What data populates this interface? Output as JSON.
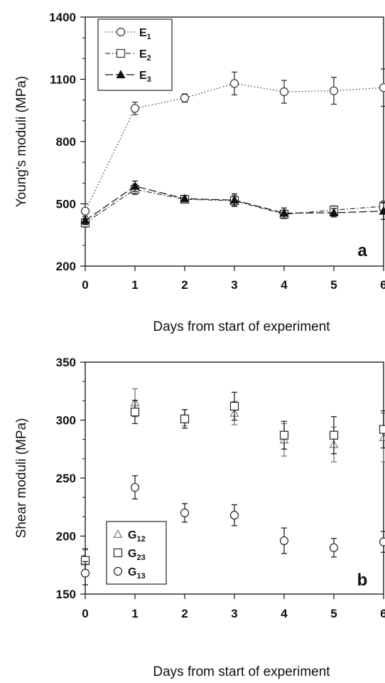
{
  "chart_data": [
    {
      "type": "line",
      "panel_label": "a",
      "xlabel": "Days from start of experiment",
      "ylabel": "Young's moduli (MPa)",
      "xlim": [
        0,
        6
      ],
      "ylim": [
        200,
        1400
      ],
      "x_ticks": [
        0,
        1,
        2,
        3,
        4,
        5,
        6
      ],
      "y_ticks": [
        200,
        500,
        800,
        1100,
        1400
      ],
      "grid": false,
      "legend_position": "top-left",
      "series": [
        {
          "name": "E",
          "sub": "1",
          "marker": "circle-open",
          "dash": "dotted",
          "color": "#333333",
          "x": [
            0,
            1,
            2,
            3,
            4,
            5,
            6
          ],
          "y": [
            465,
            960,
            1010,
            1080,
            1040,
            1045,
            1060
          ],
          "err": [
            35,
            30,
            20,
            55,
            55,
            65,
            90
          ]
        },
        {
          "name": "E",
          "sub": "2",
          "marker": "square-open",
          "dash": "dashdot",
          "color": "#333333",
          "x": [
            0,
            1,
            2,
            3,
            4,
            5,
            6
          ],
          "y": [
            408,
            570,
            522,
            515,
            450,
            470,
            488
          ],
          "err": [
            20,
            25,
            15,
            25,
            20,
            20,
            25
          ]
        },
        {
          "name": "E",
          "sub": "3",
          "marker": "triangle-filled",
          "dash": "longdash",
          "color": "#111111",
          "x": [
            0,
            1,
            2,
            3,
            4,
            5,
            6
          ],
          "y": [
            420,
            585,
            525,
            518,
            455,
            457,
            465
          ],
          "err": [
            20,
            25,
            15,
            30,
            25,
            20,
            40
          ]
        }
      ]
    },
    {
      "type": "scatter",
      "panel_label": "b",
      "xlabel": "Days from start of experiment",
      "ylabel": "Shear moduli (MPa)",
      "xlim": [
        0,
        6
      ],
      "ylim": [
        150,
        350
      ],
      "x_ticks": [
        0,
        1,
        2,
        3,
        4,
        5,
        6
      ],
      "y_ticks": [
        150,
        200,
        250,
        300,
        350
      ],
      "grid": false,
      "legend_position": "bottom-left",
      "series": [
        {
          "name": "G",
          "sub": "12",
          "marker": "triangle-open",
          "color": "#777777",
          "x": [
            0,
            1,
            2,
            3,
            4,
            5,
            6
          ],
          "y": [
            178,
            315,
            302,
            306,
            283,
            279,
            285
          ],
          "err": [
            10,
            12,
            7,
            10,
            14,
            15,
            21
          ]
        },
        {
          "name": "G",
          "sub": "23",
          "marker": "square-open",
          "color": "#222222",
          "x": [
            0,
            1,
            2,
            3,
            4,
            5,
            6
          ],
          "y": [
            179,
            307,
            301,
            312,
            287,
            287,
            292
          ],
          "err": [
            10,
            10,
            8,
            12,
            12,
            16,
            16
          ]
        },
        {
          "name": "G",
          "sub": "13",
          "marker": "circle-open",
          "color": "#222222",
          "x": [
            0,
            1,
            2,
            3,
            4,
            5,
            6
          ],
          "y": [
            168,
            242,
            220,
            218,
            196,
            190,
            195
          ],
          "err": [
            10,
            10,
            8,
            9,
            11,
            8,
            9
          ]
        }
      ]
    }
  ]
}
